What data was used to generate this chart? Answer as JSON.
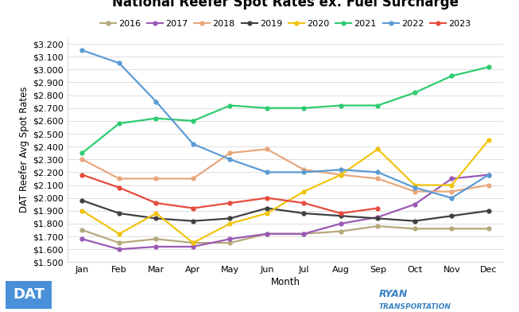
{
  "title": "National Reefer Spot Rates ex. Fuel Surcharge",
  "xlabel": "Month",
  "ylabel": "DAT Reefer Avg Spot Rates",
  "months": [
    "Jan",
    "Feb",
    "Mar",
    "Apr",
    "May",
    "Jun",
    "Jul",
    "Aug",
    "Sep",
    "Oct",
    "Nov",
    "Dec"
  ],
  "ylim": [
    1.5,
    3.25
  ],
  "ytick_step": 0.1,
  "series": [
    {
      "label": "2016",
      "color": "#b5a87a",
      "values": [
        1.75,
        1.65,
        1.68,
        1.65,
        1.65,
        1.72,
        1.72,
        1.74,
        1.78,
        1.76,
        1.76,
        1.76
      ]
    },
    {
      "label": "2017",
      "color": "#9B59B6",
      "values": [
        1.68,
        1.6,
        1.62,
        1.62,
        1.68,
        1.72,
        1.72,
        1.8,
        1.85,
        1.95,
        2.15,
        2.18
      ]
    },
    {
      "label": "2018",
      "color": "#E8A87C",
      "values": [
        2.3,
        2.15,
        2.15,
        2.15,
        2.35,
        2.38,
        2.22,
        2.18,
        2.15,
        2.05,
        2.05,
        2.1
      ]
    },
    {
      "label": "2019",
      "color": "#404040",
      "values": [
        1.98,
        1.88,
        1.84,
        1.82,
        1.84,
        1.92,
        1.88,
        1.86,
        1.84,
        1.82,
        1.86,
        1.9
      ]
    },
    {
      "label": "2020",
      "color": "#F1C40F",
      "values": [
        1.9,
        1.72,
        1.88,
        1.65,
        1.8,
        1.88,
        2.05,
        2.18,
        2.38,
        2.1,
        2.1,
        2.45
      ]
    },
    {
      "label": "2021",
      "color": "#2ECC71",
      "values": [
        2.35,
        2.58,
        2.62,
        2.6,
        2.72,
        2.7,
        2.7,
        2.72,
        2.72,
        2.82,
        2.95,
        3.02
      ]
    },
    {
      "label": "2022",
      "color": "#5B9BD5",
      "values": [
        3.15,
        3.05,
        2.75,
        2.42,
        2.3,
        2.2,
        2.2,
        2.22,
        2.2,
        2.08,
        2.0,
        2.18
      ]
    },
    {
      "label": "2023",
      "color": "#E74C3C",
      "values": [
        2.18,
        2.08,
        1.96,
        1.92,
        1.96,
        2.0,
        1.96,
        1.88,
        1.92,
        null,
        null,
        null
      ]
    }
  ],
  "background_color": "#FFFFFF",
  "grid_color": "#D9D9D9",
  "title_fontsize": 12,
  "legend_fontsize": 8,
  "axis_label_fontsize": 8.5,
  "tick_fontsize": 8
}
